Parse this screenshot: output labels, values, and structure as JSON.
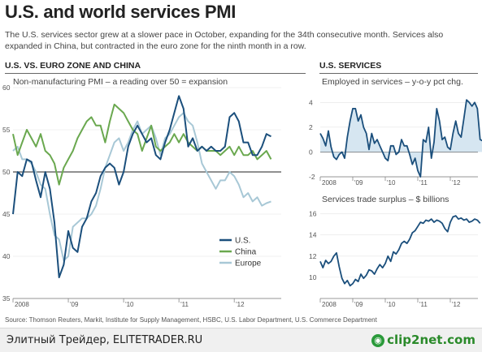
{
  "title": "U.S. and world services PMI",
  "subtitle": "The U.S. services sector grew at a slower pace in October, expanding for the 34th consecutive month. Services also expanded in China, but contracted in the euro zone for the ninth month in a row.",
  "left_section": "U.S. VS. EURO ZONE AND CHINA",
  "right_section": "U.S. SERVICES",
  "source": "Source: Thomson Reuters, Markit, Institute for Supply Management, HSBC, U.S. Labor Department, U.S. Commerce Department",
  "footer": {
    "text": "Элитный Трейдер, ELITETRADER.RU",
    "logo_text": "clip2net.com"
  },
  "colors": {
    "us": "#1b4f7c",
    "china": "#6aa84f",
    "europe": "#a8c8d6",
    "fill": "#d6e6f1",
    "axis": "#888888"
  },
  "chart_data": [
    {
      "type": "line",
      "title": "Non-manufacturing PMI – a reading over 50 = expansion",
      "x_ticks": [
        "2008",
        "'09",
        "'10",
        "'11",
        "'12"
      ],
      "y_ticks": [
        35,
        40,
        45,
        50,
        55,
        60
      ],
      "ylim": [
        35,
        60
      ],
      "reference_line": 50,
      "x_start": 2008.0,
      "x_step": 0.08333,
      "legend": [
        "U.S.",
        "China",
        "Europe"
      ],
      "legend_position": "bottom-right",
      "series": [
        {
          "name": "U.S.",
          "values": [
            45,
            50,
            49.5,
            51.5,
            51.2,
            49,
            47,
            50,
            48,
            44,
            37.5,
            39,
            43,
            41,
            40.5,
            43.5,
            44.5,
            46.5,
            47.5,
            49.5,
            50.5,
            51,
            50.5,
            48.5,
            50,
            53,
            54.5,
            55.5,
            54.5,
            53.5,
            54,
            52,
            51.5,
            53.5,
            55,
            57,
            59,
            57.5,
            53,
            54,
            52.5,
            53,
            52.5,
            53,
            52.5,
            52.5,
            53,
            56.5,
            57,
            56,
            53.5,
            53.5,
            52,
            52,
            53,
            54.5,
            54.2
          ]
        },
        {
          "name": "China",
          "values": [
            54.5,
            52,
            53.5,
            55,
            54,
            53,
            54.5,
            52.5,
            52,
            51,
            48.5,
            50.5,
            51.5,
            52.5,
            54,
            55,
            56,
            56.5,
            55.5,
            55.5,
            53.5,
            56,
            58,
            57.5,
            57,
            56,
            55,
            54.5,
            52.5,
            54,
            55.5,
            53,
            52.5,
            53,
            53.5,
            54.5,
            53.5,
            54.5,
            53.5,
            53,
            52.5,
            53,
            52.5,
            52.5,
            52.5,
            52,
            52.5,
            53,
            52,
            53,
            52,
            52,
            52.5,
            51.5,
            52,
            52.5,
            51.5
          ]
        },
        {
          "name": "Europe",
          "values": [
            52.5,
            53,
            51.5,
            51.5,
            51,
            50,
            48.5,
            48,
            45,
            42.5,
            42,
            39.5,
            40,
            43.5,
            44,
            44.5,
            44.5,
            45,
            46,
            48,
            50.5,
            52,
            53.5,
            54,
            52.5,
            53.5,
            55,
            56,
            54.5,
            55,
            55.5,
            54,
            52,
            54,
            54.5,
            55.5,
            56.5,
            57,
            56,
            55.5,
            53.5,
            51,
            50,
            49,
            48,
            49,
            49,
            50,
            49.5,
            48.5,
            47,
            47.5,
            46.5,
            47,
            46,
            46.3,
            46.5
          ]
        }
      ]
    },
    {
      "type": "area",
      "title": "Employed in services – y-o-y pct chg.",
      "x_ticks": [
        "2008",
        "'09",
        "'10",
        "'11",
        "'12"
      ],
      "y_ticks": [
        -2,
        0,
        2,
        4
      ],
      "ylim": [
        -2,
        5
      ],
      "x_start": 2008.0,
      "x_step": 0.08333,
      "values": [
        1.5,
        1.1,
        0.5,
        1.7,
        0.4,
        -0.4,
        -0.6,
        -0.2,
        0,
        -0.5,
        1.2,
        2.5,
        3.5,
        3.5,
        2.5,
        3,
        2,
        1.5,
        0.2,
        1.5,
        0.7,
        1,
        0.5,
        0,
        -0.5,
        -0.7,
        0.5,
        0.5,
        -0.2,
        0,
        1,
        0.5,
        0.5,
        -0.2,
        -1,
        -0.5,
        -1.5,
        -2,
        1,
        0.8,
        2,
        -0.5,
        0.8,
        3.5,
        2.5,
        1,
        1.2,
        0.4,
        0.2,
        1.5,
        2.5,
        1.5,
        1.2,
        2.7,
        4.2,
        4,
        3.7,
        4,
        3.5,
        1,
        0.9,
        1
      ]
    },
    {
      "type": "line",
      "title": "Services trade surplus – $ billions",
      "x_ticks": [
        "2008",
        "'09",
        "'10",
        "'11",
        "'12"
      ],
      "y_ticks": [
        10,
        12,
        14,
        16
      ],
      "ylim": [
        8,
        16.5
      ],
      "x_start": 2008.0,
      "x_step": 0.08333,
      "values": [
        11.5,
        10.9,
        11.6,
        11.3,
        11.5,
        12,
        12.3,
        11,
        9.9,
        9.4,
        9.7,
        9.2,
        9.4,
        9.8,
        9.6,
        10.3,
        9.9,
        10.2,
        10.7,
        10.6,
        10.3,
        10.8,
        11.2,
        10.9,
        11.3,
        12,
        11.5,
        12.4,
        12.2,
        12.6,
        13.2,
        13.4,
        13.2,
        13.6,
        14.2,
        14.4,
        14.8,
        15.2,
        15.1,
        15.4,
        15.3,
        15.5,
        15.2,
        15.4,
        15.3,
        15.1,
        14.6,
        14.3,
        15.2,
        15.7,
        15.8,
        15.5,
        15.6,
        15.4,
        15.5,
        15.2,
        15.3,
        15.5,
        15.4,
        15.1
      ]
    }
  ]
}
